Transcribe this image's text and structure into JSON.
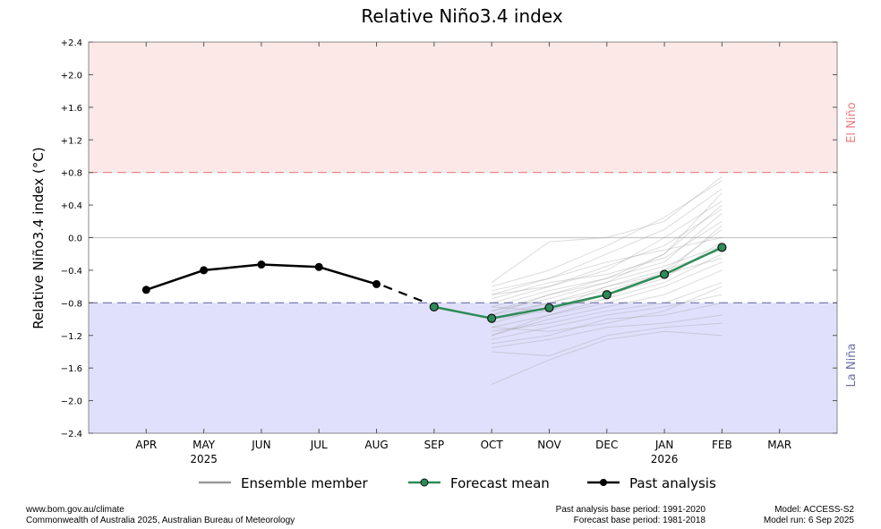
{
  "chart_data": {
    "type": "line",
    "title": "Relative Niño3.4 index",
    "ylabel": "Relative Niño3.4 index (°C)",
    "xlabel": "",
    "ylim": [
      -2.4,
      2.4
    ],
    "yticks": [
      "+2.4",
      "+2.0",
      "+1.6",
      "+1.2",
      "+0.8",
      "+0.4",
      "0.0",
      "−0.4",
      "−0.8",
      "−1.2",
      "−1.6",
      "−2.0",
      "−2.4"
    ],
    "ytick_values": [
      2.4,
      2.0,
      1.6,
      1.2,
      0.8,
      0.4,
      0.0,
      -0.4,
      -0.8,
      -1.2,
      -1.6,
      -2.0,
      -2.4
    ],
    "categories": [
      "APR",
      "MAY",
      "JUN",
      "JUL",
      "AUG",
      "SEP",
      "OCT",
      "NOV",
      "DEC",
      "JAN",
      "FEB",
      "MAR"
    ],
    "year_labels": [
      {
        "month": "MAY",
        "label": "2025"
      },
      {
        "month": "JAN",
        "label": "2026"
      }
    ],
    "grid": false,
    "thresholds": {
      "el_nino": {
        "value": 0.8,
        "label": "El Niño",
        "color": "#e87c7c",
        "fill": "#fde8e8"
      },
      "la_nina": {
        "value": -0.8,
        "label": "La Niña",
        "color": "#6e6ea8",
        "fill": "#e0e0fc"
      }
    },
    "legend": {
      "placement": "bottom",
      "entries": [
        "Ensemble member",
        "Forecast mean",
        "Past analysis"
      ]
    },
    "series": [
      {
        "name": "Past analysis",
        "color": "#000000",
        "x": [
          "APR",
          "MAY",
          "JUN",
          "JUL",
          "AUG"
        ],
        "values": [
          -0.64,
          -0.4,
          -0.33,
          -0.36,
          -0.57
        ]
      },
      {
        "name": "Forecast mean",
        "color": "#2e8b57",
        "x": [
          "SEP",
          "OCT",
          "NOV",
          "DEC",
          "JAN",
          "FEB"
        ],
        "values": [
          -0.85,
          -0.99,
          -0.86,
          -0.7,
          -0.45,
          -0.12
        ]
      }
    ],
    "ensemble": {
      "name": "Ensemble member",
      "color": "#bbbbbb",
      "x": [
        "OCT",
        "NOV",
        "DEC",
        "JAN",
        "FEB"
      ],
      "members": [
        [
          -0.55,
          -0.05,
          0.0,
          0.2,
          0.75
        ],
        [
          -0.6,
          -0.4,
          -0.1,
          0.25,
          0.7
        ],
        [
          -0.7,
          -0.5,
          -0.2,
          0.1,
          0.6
        ],
        [
          -0.8,
          -0.6,
          -0.4,
          0.0,
          0.45
        ],
        [
          -0.85,
          -0.65,
          -0.5,
          -0.2,
          0.4
        ],
        [
          -0.9,
          -0.7,
          -0.5,
          -0.3,
          0.3
        ],
        [
          -0.75,
          -0.55,
          -0.45,
          -0.25,
          0.2
        ],
        [
          -0.95,
          -0.8,
          -0.6,
          -0.4,
          0.1
        ],
        [
          -1.0,
          -0.9,
          -0.7,
          -0.5,
          -0.05
        ],
        [
          -1.05,
          -0.85,
          -0.75,
          -0.55,
          -0.2
        ],
        [
          -1.1,
          -0.95,
          -0.8,
          -0.6,
          -0.3
        ],
        [
          -1.2,
          -1.0,
          -0.85,
          -0.7,
          -0.4
        ],
        [
          -0.9,
          -0.75,
          -0.55,
          -0.35,
          -0.1
        ],
        [
          -1.15,
          -1.05,
          -0.9,
          -0.8,
          -0.55
        ],
        [
          -1.25,
          -1.1,
          -0.95,
          -0.85,
          -0.7
        ],
        [
          -1.3,
          -1.2,
          -1.0,
          -0.95,
          -0.8
        ],
        [
          -1.35,
          -1.25,
          -1.1,
          -1.05,
          -0.95
        ],
        [
          -1.4,
          -1.45,
          -1.2,
          -1.1,
          -1.05
        ],
        [
          -1.8,
          -1.5,
          -1.25,
          -1.15,
          -1.2
        ],
        [
          -0.65,
          -0.5,
          -0.3,
          -0.15,
          0.0
        ],
        [
          -1.0,
          -0.8,
          -0.65,
          -0.45,
          -0.25
        ],
        [
          -0.85,
          -0.9,
          -0.6,
          -0.45,
          0.15
        ],
        [
          -1.2,
          -0.95,
          -0.75,
          -0.4,
          -0.15
        ],
        [
          -1.1,
          -1.15,
          -1.05,
          -0.9,
          -0.6
        ],
        [
          -0.7,
          -0.6,
          -0.35,
          -0.1,
          0.35
        ],
        [
          -0.95,
          -0.7,
          -0.55,
          -0.2,
          0.55
        ]
      ]
    }
  },
  "footer": {
    "left_line1": "www.bom.gov.au/climate",
    "left_line2": "Commonwealth of Australia 2025, Australian Bureau of Meteorology",
    "mid_line1": "Past analysis base period: 1991-2020",
    "mid_line2": "Forecast base period: 1981-2018",
    "right_line1": "Model: ACCESS-S2",
    "right_line2": "Model run: 6 Sep 2025"
  }
}
